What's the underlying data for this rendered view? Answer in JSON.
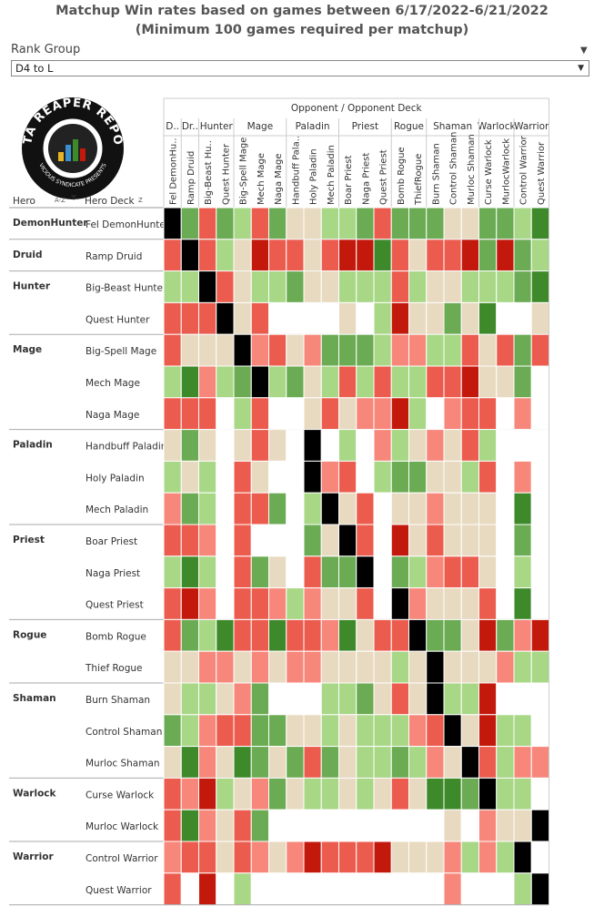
{
  "title_line1": "Matchup Win rates based on games between 6/17/2022-6/21/2022",
  "title_line2": "(Minimum 100 games required per matchup)",
  "filter": {
    "label": "Rank Group",
    "selected": "D4 to L"
  },
  "logo": {
    "text_top": "DATA REAPER REPORT",
    "text_bottom": "VICIOUS SYNDICATE PRESENTS"
  },
  "header": {
    "opponent_title": "Opponent / Opponent Deck",
    "hero_label": "Hero",
    "hero_deck_label": "Hero Deck",
    "sort_icon_az": "A-Z",
    "sort_icon_z": "Z"
  },
  "colors": {
    "black": "#000000",
    "dark_green": "#3e8a2a",
    "green": "#6bab53",
    "light_green": "#a8d786",
    "beige": "#e8dac0",
    "light_red": "#f7877a",
    "red": "#ec5c4e",
    "dark_red": "#c3190c",
    "empty": "#ffffff"
  },
  "chart_data": {
    "type": "heatmap",
    "title": "Matchup Win rates based on games between 6/17/2022-6/21/2022",
    "subtitle": "(Minimum 100 games required per matchup)",
    "xlabel": "Opponent / Opponent Deck",
    "ylabel": "Hero Deck",
    "column_groups": [
      {
        "name": "D..",
        "span": 1
      },
      {
        "name": "Dr..",
        "span": 1
      },
      {
        "name": "Hunter",
        "span": 2
      },
      {
        "name": "Mage",
        "span": 3
      },
      {
        "name": "Paladin",
        "span": 3
      },
      {
        "name": "Priest",
        "span": 3
      },
      {
        "name": "Rogue",
        "span": 2
      },
      {
        "name": "Shaman",
        "span": 3
      },
      {
        "name": "Warlock",
        "span": 2
      },
      {
        "name": "Warrior",
        "span": 2
      }
    ],
    "columns": [
      "Fel DemonHu..",
      "Ramp Druid",
      "Big-Beast Hu..",
      "Quest Hunter",
      "Big-Spell Mage",
      "Mech Mage",
      "Naga Mage",
      "Handbuff Pala..",
      "Holy Paladin",
      "Mech Paladin",
      "Boar Priest",
      "Naga Priest",
      "Quest Priest",
      "Bomb Rogue",
      "ThiefRogue",
      "Burn Shaman",
      "Control Shaman",
      "Murloc Shaman",
      "Curse Warlock",
      "MurlocWarlock",
      "Control Warrior",
      "Quest Warrior"
    ],
    "row_groups": [
      {
        "name": "DemonHunter",
        "rows": [
          "Fel DemonHunter"
        ]
      },
      {
        "name": "Druid",
        "rows": [
          "Ramp Druid"
        ]
      },
      {
        "name": "Hunter",
        "rows": [
          "Big-Beast Hunter",
          "Quest Hunter"
        ]
      },
      {
        "name": "Mage",
        "rows": [
          "Big-Spell Mage",
          "Mech Mage",
          "Naga Mage"
        ]
      },
      {
        "name": "Paladin",
        "rows": [
          "Handbuff Paladin",
          "Holy Paladin",
          "Mech Paladin"
        ]
      },
      {
        "name": "Priest",
        "rows": [
          "Boar Priest",
          "Naga Priest",
          "Quest Priest"
        ]
      },
      {
        "name": "Rogue",
        "rows": [
          "Bomb Rogue",
          "Thief Rogue"
        ]
      },
      {
        "name": "Shaman",
        "rows": [
          "Burn Shaman",
          "Control Shaman",
          "Murloc Shaman"
        ]
      },
      {
        "name": "Warlock",
        "rows": [
          "Curse Warlock",
          "Murloc Warlock"
        ]
      },
      {
        "name": "Warrior",
        "rows": [
          "Control Warrior",
          "Quest Warrior"
        ]
      }
    ],
    "color_scale": [
      "K = mirror / black",
      "G = dark green",
      "g = green",
      "l = light green",
      "b = beige",
      "p = light red",
      "r = red",
      "R = dark red",
      ". = no data"
    ],
    "cells": [
      "KgrglrgbbllgrgggbbgglG",
      "rKrlbRrrbrRRGrbrrRgRgl",
      "llKrbllgbblllrlbblllgG",
      "rrrKbr....b.lRbbgbG..b",
      "rbbbKprbpggglppllrbrgr",
      "lGplgKlgblrlrllrrRbbg.",
      "rrr.lr..brbppRl.prr.p.",
      "bgb.brb.K.l.plbpbrl...",
      "lbl.rb..Kpr.lggbblr.p.",
      "pgl.rrg.lKbr.bbpbbb.G.",
      "rrp.r...gbKr.Rbrbbb.g.",
      "lGl.rgb.rggK.glprrb.l.",
      "rRp.rrplpbbr.Kpbbbr.G.",
      "rglGrrGrrpGbrrKggbRgpR",
      "bbppbpbppbbbblbKbbbpll",
      "bllbpg...llgbrbKllR...",
      "glprrggbblblllprKbRll.",
      "bGpbGgbgrgbllglpbKrlpp",
      "rpRlbpgbllblbrbGGgKll.",
      "rGpbrg..........b.pbbK",
      "prrbrpbpRrrrRbbbplplK.",
      "r.R.l...........p...lK"
    ]
  }
}
